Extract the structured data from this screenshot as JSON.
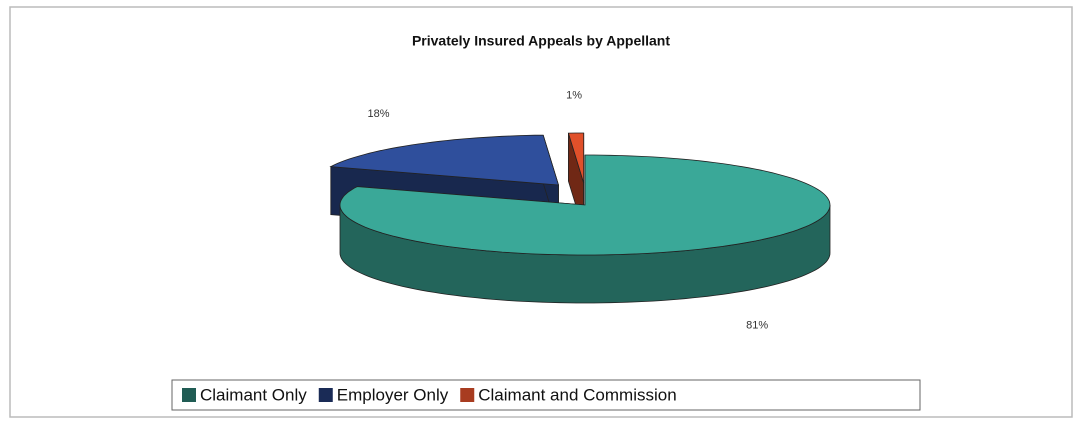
{
  "chart_data": {
    "type": "pie",
    "title": "Privately Insured Appeals by Appellant",
    "categories": [
      "Claimant Only",
      "Employer Only",
      "Claimant and Commission"
    ],
    "values": [
      81,
      18,
      1
    ],
    "value_labels": [
      "81%",
      "18%",
      "1%"
    ],
    "colors": [
      "#3aa898",
      "#2f4f9c",
      "#e0502a"
    ]
  }
}
